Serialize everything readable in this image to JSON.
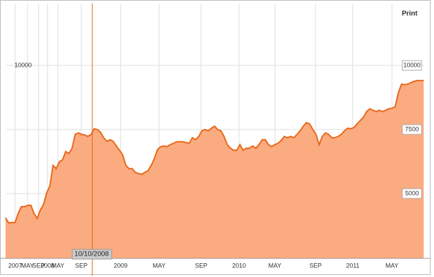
{
  "chart_data": {
    "type": "area",
    "print_label": "Print",
    "annotation": "10/10/2008",
    "x_labels": [
      "2007",
      "MAY",
      "SEP",
      "2008",
      "MAY",
      "SEP",
      "2009",
      "MAY",
      "SEP",
      "2010",
      "MAY",
      "SEP",
      "2011",
      "MAY"
    ],
    "values": [
      4060,
      3850,
      3870,
      3870,
      4220,
      4490,
      4490,
      4540,
      4540,
      4220,
      4030,
      4360,
      4570,
      5030,
      5300,
      6100,
      5970,
      6240,
      6320,
      6640,
      6560,
      6770,
      7310,
      7370,
      7310,
      7290,
      7230,
      7310,
      7530,
      7500,
      7390,
      7180,
      7040,
      7100,
      7040,
      6860,
      6690,
      6510,
      6100,
      5970,
      5970,
      5830,
      5780,
      5750,
      5830,
      5890,
      6100,
      6370,
      6720,
      6830,
      6860,
      6830,
      6910,
      6960,
      7020,
      7020,
      7020,
      6990,
      6960,
      7180,
      7100,
      7230,
      7450,
      7500,
      7450,
      7550,
      7630,
      7500,
      7450,
      7230,
      6910,
      6770,
      6690,
      6690,
      6910,
      6690,
      6770,
      6770,
      6860,
      6770,
      6910,
      7100,
      7100,
      6910,
      6830,
      6910,
      6960,
      7070,
      7230,
      7180,
      7230,
      7180,
      7310,
      7450,
      7630,
      7770,
      7720,
      7500,
      7310,
      6910,
      7230,
      7370,
      7310,
      7180,
      7180,
      7230,
      7310,
      7450,
      7550,
      7530,
      7580,
      7720,
      7850,
      7980,
      8200,
      8310,
      8250,
      8200,
      8250,
      8200,
      8250,
      8310,
      8330,
      8390,
      8930,
      9270,
      9250,
      9270,
      9330,
      9380,
      9410,
      9410,
      9410
    ],
    "color": "#fbab80",
    "line_color": "#e8681a",
    "ylim": [
      2470,
      12420
    ],
    "yticks": [
      5000,
      7500,
      10000
    ],
    "grid": true
  }
}
